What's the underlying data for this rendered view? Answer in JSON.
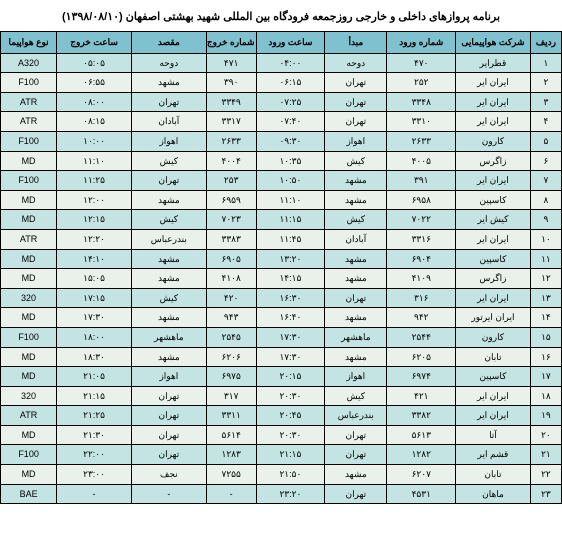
{
  "title": "برنامه پروازهای داخلی و خارجی روزجمعه فرودگاه بین المللی شهید بهشتی اصفهان (۱۳۹۸/۰۸/۱۰)",
  "colors": {
    "header_bg": "#7fc1ce",
    "row_odd_bg": "#c4e3e3",
    "row_even_bg": "#e9f1ea",
    "border": "#000000",
    "text": "#000000"
  },
  "headers": [
    "ردیف",
    "شرکت هواپیمایی",
    "شماره ورود",
    "مبدأ",
    "ساعت ورود",
    "شماره خروج",
    "مقصد",
    "ساعت خروج",
    "نوع هواپیما"
  ],
  "rows": [
    [
      "۱",
      "قطرایر",
      "۴۷۰",
      "دوحه",
      "۰۴:۰۰",
      "۴۷۱",
      "دوحه",
      "۰۵:۰۵",
      "A320"
    ],
    [
      "۲",
      "ایران ایر",
      "۲۵۲",
      "تهران",
      "۰۶:۱۵",
      "۳۹۰",
      "مشهد",
      "۰۶:۵۵",
      "F100"
    ],
    [
      "۳",
      "ایران ایر",
      "۳۳۴۸",
      "تهران",
      "۰۷:۲۵",
      "۳۳۴۹",
      "تهران",
      "۰۸:۰۰",
      "ATR"
    ],
    [
      "۴",
      "ایران ایر",
      "۳۳۱۰",
      "تهران",
      "۰۷:۴۰",
      "۳۳۱۷",
      "آبادان",
      "۰۸:۱۵",
      "ATR"
    ],
    [
      "۵",
      "کارون",
      "۲۶۳۳",
      "اهواز",
      "۰۹:۳۰",
      "۲۶۳۳",
      "اهواز",
      "۱۰:۰۰",
      "F100"
    ],
    [
      "۶",
      "زاگرس",
      "۴۰۰۵",
      "کیش",
      "۱۰:۳۵",
      "۴۰۰۴",
      "کیش",
      "۱۱:۱۰",
      "MD"
    ],
    [
      "۷",
      "ایران ایر",
      "۳۹۱",
      "مشهد",
      "۱۰:۵۰",
      "۲۵۳",
      "تهران",
      "۱۱:۲۵",
      "F100"
    ],
    [
      "۸",
      "کاسپین",
      "۶۹۵۸",
      "مشهد",
      "۱۱:۱۰",
      "۶۹۵۹",
      "مشهد",
      "۱۲:۰۰",
      "MD"
    ],
    [
      "۹",
      "کیش ایر",
      "۷۰۲۲",
      "کیش",
      "۱۱:۱۵",
      "۷۰۲۳",
      "کیش",
      "۱۲:۱۵",
      "MD"
    ],
    [
      "۱۰",
      "ایران ایر",
      "۳۳۱۶",
      "آبادان",
      "۱۱:۴۵",
      "۳۳۸۳",
      "بندرعباس",
      "۱۲:۲۰",
      "ATR"
    ],
    [
      "۱۱",
      "کاسپین",
      "۶۹۰۴",
      "مشهد",
      "۱۳:۲۰",
      "۶۹۰۵",
      "مشهد",
      "۱۴:۱۰",
      "MD"
    ],
    [
      "۱۲",
      "زاگرس",
      "۴۱۰۹",
      "مشهد",
      "۱۴:۱۵",
      "۴۱۰۸",
      "مشهد",
      "۱۵:۰۵",
      "MD"
    ],
    [
      "۱۳",
      "ایران ایر",
      "۳۱۶",
      "تهران",
      "۱۶:۳۰",
      "۴۲۰",
      "کیش",
      "۱۷:۱۵",
      "320"
    ],
    [
      "۱۴",
      "ایران ایرتور",
      "۹۴۲",
      "مشهد",
      "۱۶:۴۰",
      "۹۴۳",
      "مشهد",
      "۱۷:۳۰",
      "MD"
    ],
    [
      "۱۵",
      "کارون",
      "۲۵۴۴",
      "ماهشهر",
      "۱۷:۳۰",
      "۲۵۴۵",
      "ماهشهر",
      "۱۸:۰۰",
      "F100"
    ],
    [
      "۱۶",
      "تابان",
      "۶۲۰۵",
      "مشهد",
      "۱۷:۳۰",
      "۶۲۰۶",
      "مشهد",
      "۱۸:۳۰",
      "MD"
    ],
    [
      "۱۷",
      "کاسپین",
      "۶۹۷۴",
      "اهواز",
      "۲۰:۱۵",
      "۶۹۷۵",
      "اهواز",
      "۲۱:۰۵",
      "MD"
    ],
    [
      "۱۸",
      "ایران ایر",
      "۴۲۱",
      "کیش",
      "۲۰:۳۰",
      "۳۱۷",
      "تهران",
      "۲۱:۱۵",
      "320"
    ],
    [
      "۱۹",
      "ایران ایر",
      "۳۳۸۲",
      "بندرعباس",
      "۲۰:۴۵",
      "۳۳۱۱",
      "تهران",
      "۲۱:۲۵",
      "ATR"
    ],
    [
      "۲۰",
      "آتا",
      "۵۶۱۳",
      "تهران",
      "۲۰:۳۰",
      "۵۶۱۴",
      "تهران",
      "۲۱:۳۰",
      "MD"
    ],
    [
      "۲۱",
      "قشم ایر",
      "۱۲۸۲",
      "تهران",
      "۲۱:۱۵",
      "۱۲۸۳",
      "تهران",
      "۲۲:۰۰",
      "F100"
    ],
    [
      "۲۲",
      "تابان",
      "۶۲۰۷",
      "مشهد",
      "۲۱:۵۰",
      "۷۲۵۵",
      "نجف",
      "۲۳:۰۰",
      "MD"
    ],
    [
      "۲۳",
      "ماهان",
      "۴۵۳۱",
      "تهران",
      "۲۳:۲۰",
      "-",
      "-",
      "-",
      "BAE"
    ]
  ]
}
